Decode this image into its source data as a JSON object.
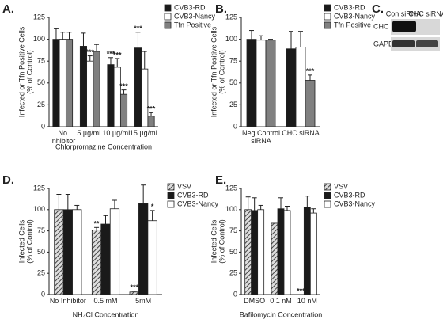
{
  "chart_data": [
    {
      "type": "bar",
      "panel_label": "A.",
      "ylabel": [
        "Infected or Tfn Positive Cells",
        "(% of Control)"
      ],
      "xlabel": "Chlorpromazine Concentration",
      "categories": [
        "No Inhibitor",
        "5 µg/mL",
        "10 µg/mL",
        "15 µg/mL"
      ],
      "series": [
        {
          "name": "CVB3-RD",
          "color": "#1a1a1a",
          "values": [
            100,
            92,
            71,
            90
          ],
          "errors": [
            12,
            15,
            8,
            18
          ],
          "annotations": [
            null,
            null,
            "***",
            "***"
          ]
        },
        {
          "name": "CVB3-Nancy",
          "color": "#ffffff",
          "values": [
            100,
            75,
            68,
            66
          ],
          "errors": [
            8,
            6,
            10,
            20
          ],
          "annotations": [
            null,
            "***",
            "***",
            null
          ]
        },
        {
          "name": "Tfn Positive",
          "color": "#808080",
          "values": [
            100,
            86,
            37,
            12
          ],
          "errors": [
            8,
            8,
            5,
            4
          ],
          "annotations": [
            null,
            null,
            "***",
            "***"
          ]
        }
      ],
      "ylim": [
        0,
        125
      ],
      "yticks": [
        0,
        25,
        50,
        75,
        100,
        125
      ]
    },
    {
      "type": "bar",
      "panel_label": "B.",
      "ylabel": [
        "Infected or Tfn Positive Cells",
        "(% of Control)"
      ],
      "categories": [
        "Neg Control siRNA",
        "CHC siRNA"
      ],
      "series": [
        {
          "name": "CVB3-RD",
          "color": "#1a1a1a",
          "values": [
            100,
            89
          ],
          "errors": [
            10,
            20
          ],
          "annotations": [
            null,
            null
          ]
        },
        {
          "name": "CVB3-Nancy",
          "color": "#ffffff",
          "values": [
            99,
            91
          ],
          "errors": [
            5,
            18
          ],
          "annotations": [
            null,
            null
          ]
        },
        {
          "name": "Tfn Positive",
          "color": "#808080",
          "values": [
            99,
            53
          ],
          "errors": [
            1,
            6
          ],
          "annotations": [
            null,
            "***"
          ]
        }
      ],
      "ylim": [
        0,
        125
      ],
      "yticks": [
        0,
        25,
        50,
        75,
        100,
        125
      ]
    },
    {
      "type": "bar",
      "panel_label": "D.",
      "ylabel": [
        "Infected Cells",
        "(% of Control)"
      ],
      "xlabel": "NH₄Cl Concentration",
      "categories": [
        "No Inhibitor",
        "0.5 mM",
        "5mM"
      ],
      "series": [
        {
          "name": "VSV",
          "color": "#888888",
          "pattern": "hatch",
          "values": [
            100,
            76,
            3
          ],
          "errors": [
            18,
            3,
            1
          ],
          "annotations": [
            null,
            "**",
            "***"
          ]
        },
        {
          "name": "CVB3-RD",
          "color": "#1a1a1a",
          "values": [
            100,
            83,
            107
          ],
          "errors": [
            18,
            10,
            22
          ],
          "annotations": [
            null,
            null,
            null
          ]
        },
        {
          "name": "CVB3-Nancy",
          "color": "#ffffff",
          "values": [
            100,
            101,
            87
          ],
          "errors": [
            5,
            10,
            12
          ],
          "annotations": [
            null,
            null,
            "*"
          ]
        }
      ],
      "ylim": [
        0,
        125
      ],
      "yticks": [
        0,
        25,
        50,
        75,
        100,
        125
      ]
    },
    {
      "type": "bar",
      "panel_label": "E.",
      "ylabel": [
        "Infected Cells",
        "(% of Control)"
      ],
      "xlabel": "Bafilomycin Concentration",
      "categories": [
        "DMSO",
        "0.1 nM",
        "10 nM"
      ],
      "series": [
        {
          "name": "VSV",
          "color": "#888888",
          "pattern": "hatch",
          "values": [
            100,
            84,
            0
          ],
          "errors": [
            15,
            null,
            null
          ],
          "annotations": [
            null,
            null,
            "***"
          ]
        },
        {
          "name": "CVB3-RD",
          "color": "#1a1a1a",
          "values": [
            99,
            101,
            103
          ],
          "errors": [
            15,
            13,
            13
          ],
          "annotations": [
            null,
            null,
            null
          ]
        },
        {
          "name": "CVB3-Nancy",
          "color": "#ffffff",
          "values": [
            100,
            99,
            96
          ],
          "errors": [
            5,
            5,
            5
          ],
          "annotations": [
            null,
            null,
            null
          ]
        }
      ],
      "ylim": [
        0,
        125
      ],
      "yticks": [
        0,
        25,
        50,
        75,
        100,
        125
      ]
    }
  ],
  "blot": {
    "panel_label": "C.",
    "columns": [
      "Con siRNA",
      "CHC siRNA"
    ],
    "rows": [
      "CHC",
      "GAPDH"
    ]
  }
}
